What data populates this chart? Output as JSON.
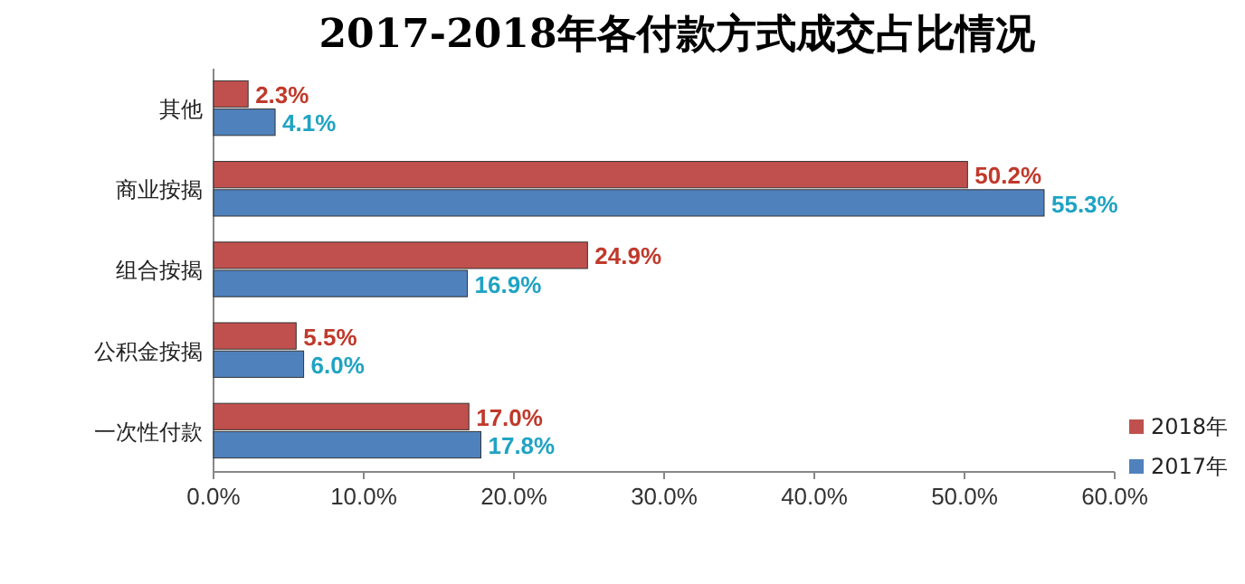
{
  "chart_data": {
    "type": "bar",
    "orientation": "horizontal",
    "title": "2017-2018年各付款方式成交占比情况",
    "categories": [
      "其他",
      "商业按揭",
      "组合按揭",
      "公积金按揭",
      "一次性付款"
    ],
    "series": [
      {
        "name": "2018年",
        "color": "#c0504d",
        "values": [
          2.3,
          50.2,
          24.9,
          5.5,
          17.0
        ],
        "value_labels": [
          "2.3%",
          "50.2%",
          "24.9%",
          "5.5%",
          "17.0%"
        ]
      },
      {
        "name": "2017年",
        "color": "#4f81bd",
        "values": [
          4.1,
          55.3,
          16.9,
          6.0,
          17.8
        ],
        "value_labels": [
          "4.1%",
          "55.3%",
          "16.9%",
          "6.0%",
          "17.8%"
        ]
      }
    ],
    "xlim": [
      0,
      60
    ],
    "xticks": [
      {
        "value": 0,
        "label": "0.0%"
      },
      {
        "value": 10,
        "label": "10.0%"
      },
      {
        "value": 20,
        "label": "20.0%"
      },
      {
        "value": 30,
        "label": "30.0%"
      },
      {
        "value": 40,
        "label": "40.0%"
      },
      {
        "value": 50,
        "label": "50.0%"
      },
      {
        "value": 60,
        "label": "60.0%"
      }
    ],
    "legend": "right",
    "grid": false
  }
}
